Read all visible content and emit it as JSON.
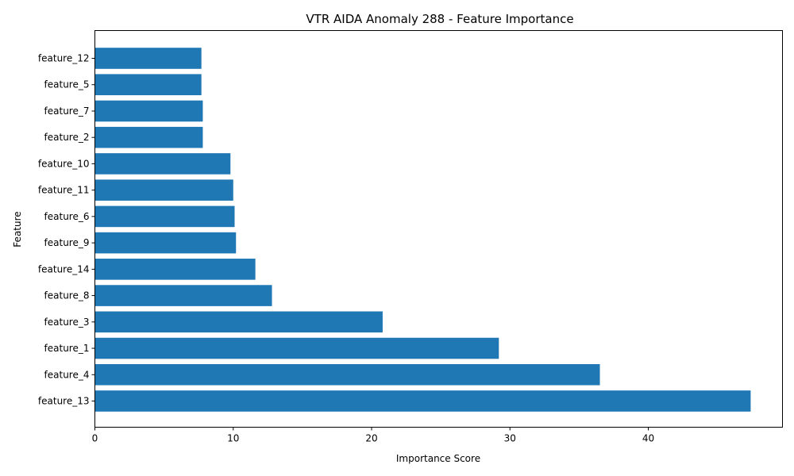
{
  "chart_data": {
    "type": "bar",
    "orientation": "horizontal",
    "title": "VTR AIDA Anomaly 288 - Feature Importance",
    "xlabel": "Importance Score",
    "ylabel": "Feature",
    "categories": [
      "feature_13",
      "feature_4",
      "feature_1",
      "feature_3",
      "feature_8",
      "feature_14",
      "feature_9",
      "feature_6",
      "feature_11",
      "feature_10",
      "feature_2",
      "feature_7",
      "feature_5",
      "feature_12"
    ],
    "values": [
      47.4,
      36.5,
      29.2,
      20.8,
      12.8,
      11.6,
      10.2,
      10.1,
      10.0,
      9.8,
      7.8,
      7.8,
      7.7,
      7.7
    ],
    "xlim": [
      0,
      49.7
    ],
    "xticks": [
      0,
      10,
      20,
      30,
      40
    ],
    "color": "#1f77b4",
    "grid": false
  }
}
